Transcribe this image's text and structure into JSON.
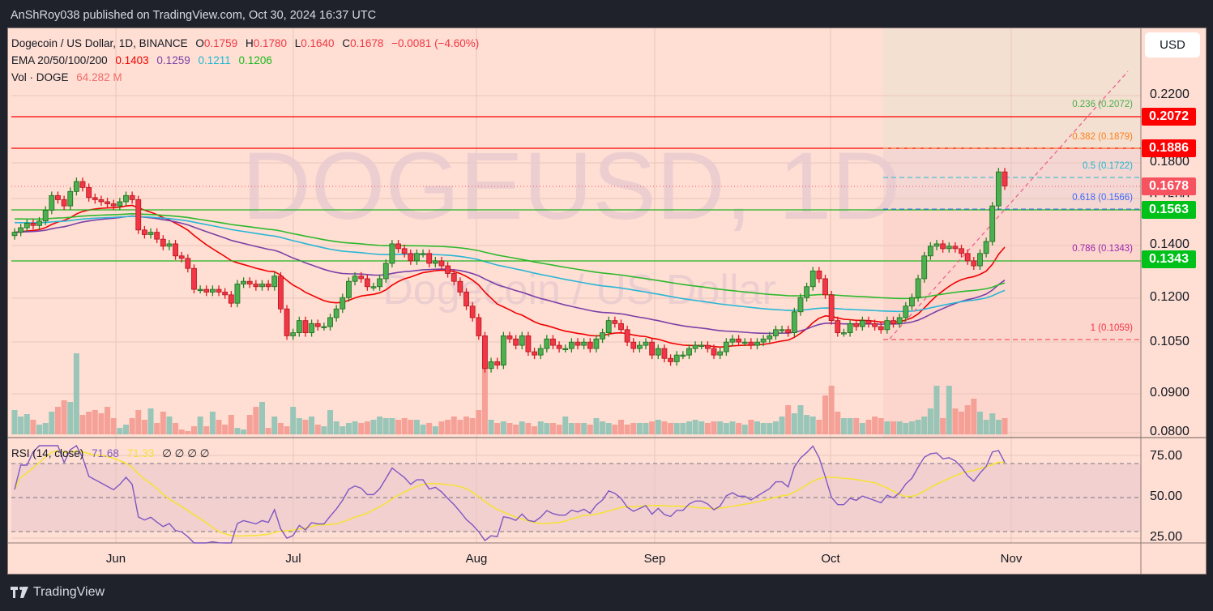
{
  "topbar": {
    "publish_text": "AnShRoy038 published on TradingView.com, Oct 30, 2024 16:37 UTC"
  },
  "legend": {
    "symbol_line": "Dogecoin / US Dollar, 1D, BINANCE",
    "open_label": "O",
    "open": "0.1759",
    "high_label": "H",
    "high": "0.1780",
    "low_label": "L",
    "low": "0.1640",
    "close_label": "C",
    "close": "0.1678",
    "change": "−0.0081 (−4.60%)",
    "ema_label": "EMA 20/50/100/200",
    "ema20": "0.1403",
    "ema50": "0.1259",
    "ema100": "0.1211",
    "ema200": "0.1206",
    "vol_label": "Vol · DOGE",
    "vol": "64.282 M"
  },
  "rsi_legend": {
    "label": "RSI (14, close)",
    "rsi": "71.68",
    "rsi_ma": "71.33",
    "extras": "∅  ∅  ∅  ∅"
  },
  "watermark": {
    "big": "DOGEUSD, 1D",
    "small": "Dogecoin / US Dollar"
  },
  "currency_button": "USD",
  "colors": {
    "up": "#4caf50",
    "down": "#f23645",
    "ema20": "#f00000",
    "ema50": "#7b3fa8",
    "ema100": "#29b6d6",
    "ema200": "#2eb82e",
    "rsi": "#7e57c2",
    "rsi_ma": "#f5e13a",
    "vol_up": "#8ec3b5",
    "vol_down": "#f49a91"
  },
  "price_axis": {
    "ticks": [
      "0.2200",
      "0.1800",
      "0.1600",
      "0.1400",
      "0.1200",
      "0.1050",
      "0.0900",
      "0.0800"
    ],
    "tags": [
      {
        "value": "0.2072",
        "color": "#ff0000"
      },
      {
        "value": "0.1886",
        "color": "#ff0000"
      },
      {
        "value": "0.1678",
        "color": "#f7525f"
      },
      {
        "value": "0.1563",
        "color": "#00c01a"
      },
      {
        "value": "0.1343",
        "color": "#00c01a"
      }
    ]
  },
  "rsi_axis": {
    "ticks": [
      "75.00",
      "50.00",
      "25.00"
    ]
  },
  "time_axis": {
    "labels": [
      "Jun",
      "Jul",
      "Aug",
      "Sep",
      "Oct",
      "Nov"
    ]
  },
  "fib_levels": [
    {
      "label": "0.236 (0.2072)",
      "color": "#4caf50"
    },
    {
      "label": "0.382 (0.1879)",
      "color": "#ff7f1e"
    },
    {
      "label": "0.5 (0.1722)",
      "color": "#1eb8d4"
    },
    {
      "label": "0.618 (0.1566)",
      "color": "#3d6bff"
    },
    {
      "label": "0.786 (0.1343)",
      "color": "#9c27b0"
    },
    {
      "label": "1 (0.1059)",
      "color": "#f23645"
    }
  ],
  "footer": {
    "brand": "TradingView"
  },
  "chart_data": {
    "type": "candlestick",
    "title": "Dogecoin / US Dollar, 1D, BINANCE",
    "symbol": "DOGEUSD",
    "interval": "1D",
    "x_labels": [
      "Jun",
      "Jul",
      "Aug",
      "Sep",
      "Oct",
      "Nov"
    ],
    "y_scale": "log",
    "ylim": [
      0.08,
      0.235
    ],
    "y_ticks": [
      0.22,
      0.18,
      0.16,
      0.14,
      0.12,
      0.105,
      0.09,
      0.08
    ],
    "last_bar": {
      "open": 0.1759,
      "high": 0.178,
      "low": 0.164,
      "close": 0.1678,
      "change": -0.0081,
      "change_pct": -4.6
    },
    "horizontal_lines": [
      {
        "price": 0.2072,
        "color": "red"
      },
      {
        "price": 0.1886,
        "color": "red"
      },
      {
        "price": 0.1563,
        "color": "green"
      },
      {
        "price": 0.1343,
        "color": "green"
      }
    ],
    "fibonacci_retracement": [
      {
        "level": 0.236,
        "price": 0.2072
      },
      {
        "level": 0.382,
        "price": 0.1879
      },
      {
        "level": 0.5,
        "price": 0.1722
      },
      {
        "level": 0.618,
        "price": 0.1566
      },
      {
        "level": 0.786,
        "price": 0.1343
      },
      {
        "level": 1,
        "price": 0.1059
      }
    ],
    "ema_latest": {
      "ema20": 0.1403,
      "ema50": 0.1259,
      "ema100": 0.1211,
      "ema200": 0.1206
    },
    "volume_latest": "64.282M",
    "rsi": {
      "period": 14,
      "value": 71.68,
      "ma": 71.33,
      "levels": [
        30,
        50,
        70
      ],
      "axis_ticks": [
        75,
        50,
        25
      ]
    },
    "closes_approx": [
      0.146,
      0.148,
      0.15,
      0.149,
      0.151,
      0.156,
      0.163,
      0.161,
      0.158,
      0.165,
      0.17,
      0.167,
      0.162,
      0.161,
      0.16,
      0.159,
      0.158,
      0.16,
      0.163,
      0.161,
      0.147,
      0.145,
      0.146,
      0.143,
      0.14,
      0.141,
      0.136,
      0.135,
      0.131,
      0.123,
      0.123,
      0.122,
      0.123,
      0.122,
      0.121,
      0.118,
      0.125,
      0.126,
      0.125,
      0.124,
      0.125,
      0.124,
      0.128,
      0.116,
      0.107,
      0.108,
      0.112,
      0.108,
      0.111,
      0.11,
      0.11,
      0.113,
      0.116,
      0.12,
      0.126,
      0.128,
      0.127,
      0.124,
      0.124,
      0.127,
      0.133,
      0.141,
      0.139,
      0.137,
      0.134,
      0.137,
      0.137,
      0.133,
      0.134,
      0.132,
      0.129,
      0.126,
      0.122,
      0.117,
      0.113,
      0.107,
      0.097,
      0.099,
      0.098,
      0.107,
      0.106,
      0.104,
      0.107,
      0.102,
      0.101,
      0.103,
      0.106,
      0.104,
      0.103,
      0.103,
      0.105,
      0.104,
      0.105,
      0.103,
      0.106,
      0.108,
      0.112,
      0.111,
      0.109,
      0.105,
      0.103,
      0.104,
      0.105,
      0.101,
      0.103,
      0.1,
      0.099,
      0.101,
      0.101,
      0.103,
      0.104,
      0.104,
      0.103,
      0.101,
      0.102,
      0.105,
      0.106,
      0.105,
      0.105,
      0.104,
      0.105,
      0.106,
      0.107,
      0.109,
      0.109,
      0.108,
      0.115,
      0.12,
      0.124,
      0.13,
      0.127,
      0.121,
      0.112,
      0.108,
      0.108,
      0.111,
      0.11,
      0.112,
      0.111,
      0.11,
      0.109,
      0.112,
      0.111,
      0.113,
      0.117,
      0.12,
      0.127,
      0.136,
      0.14,
      0.141,
      0.139,
      0.14,
      0.139,
      0.137,
      0.134,
      0.132,
      0.137,
      0.142,
      0.158,
      0.175,
      0.1678
    ]
  }
}
